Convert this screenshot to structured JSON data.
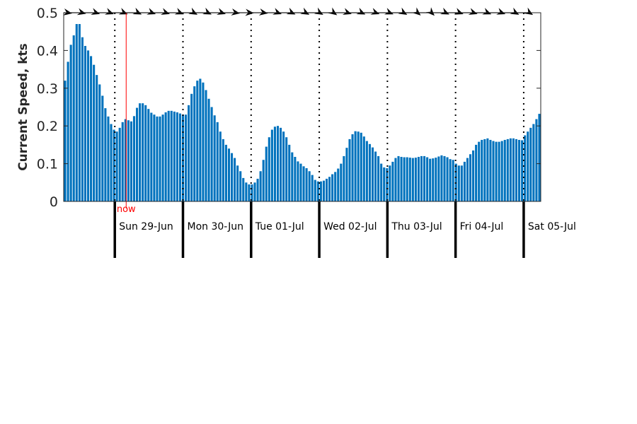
{
  "chart_data": {
    "type": "bar",
    "title": "",
    "xlabel": "",
    "ylabel": "Current Speed, kts",
    "ylim": [
      0,
      0.5
    ],
    "yticks": [
      0,
      0.1,
      0.2,
      0.3,
      0.4,
      0.5
    ],
    "ytick_labels": [
      "0",
      "0.1",
      "0.2",
      "0.3",
      "0.4",
      "0.5"
    ],
    "interval_hours": 1,
    "start_offset_hours": -18,
    "total_hours": 168,
    "days": [
      "Sun 29-Jun",
      "Mon 30-Jun",
      "Tue 01-Jul",
      "Wed 02-Jul",
      "Thu 03-Jul",
      "Fri 04-Jul",
      "Sat 05-Jul"
    ],
    "now_label": "now",
    "now_offset_hours": 4,
    "grid": false,
    "bar_color": "#0072BD",
    "now_color": "#FF0000",
    "values": [
      0.32,
      0.37,
      0.415,
      0.44,
      0.47,
      0.47,
      0.435,
      0.412,
      0.4,
      0.385,
      0.362,
      0.335,
      0.31,
      0.28,
      0.247,
      0.225,
      0.205,
      0.19,
      0.185,
      0.195,
      0.21,
      0.218,
      0.215,
      0.212,
      0.226,
      0.248,
      0.26,
      0.26,
      0.255,
      0.245,
      0.235,
      0.23,
      0.225,
      0.225,
      0.23,
      0.236,
      0.24,
      0.24,
      0.238,
      0.236,
      0.233,
      0.23,
      0.23,
      0.255,
      0.285,
      0.305,
      0.32,
      0.325,
      0.315,
      0.295,
      0.272,
      0.25,
      0.228,
      0.21,
      0.185,
      0.165,
      0.15,
      0.14,
      0.128,
      0.115,
      0.095,
      0.08,
      0.062,
      0.05,
      0.045,
      0.045,
      0.05,
      0.06,
      0.08,
      0.11,
      0.145,
      0.17,
      0.19,
      0.198,
      0.2,
      0.195,
      0.185,
      0.17,
      0.15,
      0.13,
      0.118,
      0.106,
      0.1,
      0.093,
      0.088,
      0.08,
      0.07,
      0.057,
      0.053,
      0.053,
      0.055,
      0.06,
      0.065,
      0.072,
      0.078,
      0.087,
      0.1,
      0.12,
      0.142,
      0.165,
      0.178,
      0.186,
      0.185,
      0.182,
      0.172,
      0.16,
      0.152,
      0.143,
      0.132,
      0.12,
      0.1,
      0.09,
      0.088,
      0.095,
      0.105,
      0.115,
      0.12,
      0.118,
      0.117,
      0.117,
      0.116,
      0.115,
      0.116,
      0.118,
      0.12,
      0.12,
      0.117,
      0.113,
      0.114,
      0.116,
      0.119,
      0.122,
      0.12,
      0.117,
      0.112,
      0.11,
      0.1,
      0.095,
      0.095,
      0.105,
      0.115,
      0.125,
      0.135,
      0.15,
      0.158,
      0.163,
      0.165,
      0.167,
      0.163,
      0.16,
      0.158,
      0.158,
      0.16,
      0.163,
      0.165,
      0.167,
      0.167,
      0.165,
      0.163,
      0.162,
      0.175,
      0.185,
      0.195,
      0.205,
      0.218,
      0.232
    ],
    "direction_arrows_deg": [
      100,
      105,
      108,
      110,
      112,
      115,
      110,
      108,
      112,
      118,
      115,
      108,
      100,
      95,
      100,
      110,
      115,
      118,
      120,
      125,
      108,
      115,
      110,
      112,
      120,
      130,
      135,
      115,
      110,
      108,
      112,
      110,
      118,
      122
    ]
  }
}
